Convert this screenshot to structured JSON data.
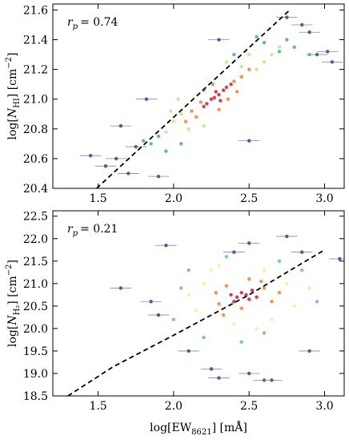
{
  "chart_data": [
    {
      "type": "scatter",
      "annotation": {
        "symbol": "r",
        "subscript": "p",
        "text": "= 0.74"
      },
      "ylabel": {
        "prefix": "log[",
        "symbol": "N",
        "subscript": "HI",
        "suffix": "] [cm",
        "superscript": "−2",
        "end": "]"
      },
      "xlim": [
        1.2,
        3.13
      ],
      "ylim": [
        20.4,
        21.64
      ],
      "xticks": [
        1.5,
        {
          "value": 2.0,
          "label": "2.0"
        },
        2.5,
        {
          "value": 3.0,
          "label": "3.0"
        }
      ],
      "yticks": [
        20.4,
        20.6,
        20.8,
        {
          "value": 21.0,
          "label": "21.0"
        },
        21.2,
        21.4,
        21.6
      ],
      "groups": [
        {
          "color": "#4a5aa8",
          "xerr": 0.07,
          "x": [
            1.55,
            1.62,
            1.7,
            1.75,
            1.45,
            2.9,
            2.95,
            3.02,
            2.85,
            2.3,
            1.65,
            1.9,
            2.5,
            2.75,
            1.82,
            3.05
          ],
          "y": [
            20.55,
            20.6,
            20.5,
            20.68,
            20.62,
            21.45,
            21.3,
            21.32,
            21.5,
            21.4,
            20.82,
            20.48,
            20.72,
            21.55,
            21.0,
            21.25
          ]
        },
        {
          "color": "#5fb8a8",
          "x": [
            1.85,
            1.9,
            2.7,
            2.75,
            2.8,
            2.6,
            1.8,
            2.9,
            1.95,
            2.55,
            2.4,
            2.05
          ],
          "y": [
            20.7,
            20.75,
            21.32,
            21.4,
            21.35,
            21.38,
            20.72,
            21.3,
            20.65,
            21.42,
            21.3,
            20.7
          ]
        },
        {
          "color": "#c8e89a",
          "x": [
            1.95,
            2.0,
            2.05,
            2.55,
            2.6,
            2.5,
            2.1,
            2.45,
            2.65,
            1.98,
            2.35,
            2.2,
            2.7,
            2.03
          ],
          "y": [
            20.78,
            20.85,
            20.9,
            21.2,
            21.25,
            21.3,
            20.8,
            21.22,
            21.3,
            20.92,
            21.25,
            20.82,
            21.35,
            21.0
          ]
        },
        {
          "color": "#f98e52",
          "x": [
            2.12,
            2.18,
            2.4,
            2.45,
            2.15,
            2.36,
            2.26,
            2.42,
            2.08,
            2.3,
            2.5,
            2.2
          ],
          "y": [
            20.92,
            20.98,
            21.12,
            21.15,
            20.88,
            21.0,
            21.1,
            21.05,
            20.85,
            20.93,
            21.2,
            21.06
          ]
        },
        {
          "color": "#d53e4f",
          "x": [
            2.25,
            2.3,
            2.28,
            2.33,
            2.22,
            2.35,
            2.27,
            2.31,
            2.2,
            2.38
          ],
          "y": [
            21.0,
            21.03,
            21.05,
            21.06,
            20.97,
            21.08,
            21.01,
            20.99,
            20.95,
            21.1
          ]
        }
      ],
      "fit": {
        "x": [
          1.49,
          2.77
        ],
        "y": [
          20.4,
          21.6
        ]
      }
    },
    {
      "type": "scatter",
      "annotation": {
        "symbol": "r",
        "subscript": "p",
        "text": "= 0.21"
      },
      "ylabel": {
        "prefix": "log[",
        "symbol": "N",
        "subscript": "H₂",
        "suffix": "] [cm",
        "superscript": "−2",
        "end": "]"
      },
      "xlabel": {
        "prefix": "log[EW",
        "subscript": "8621",
        "suffix": "] [mÅ]"
      },
      "xlim": [
        1.2,
        3.13
      ],
      "ylim": [
        18.5,
        22.62
      ],
      "xticks": [
        1.5,
        {
          "value": 2.0,
          "label": "2.0"
        },
        2.5,
        {
          "value": 3.0,
          "label": "3.0"
        }
      ],
      "yticks": [
        18.5,
        {
          "value": 19.0,
          "label": "19.0"
        },
        19.5,
        {
          "value": 20.0,
          "label": "20.0"
        },
        20.5,
        {
          "value": 21.0,
          "label": "21.0"
        },
        21.5,
        {
          "value": 22.0,
          "label": "22.0"
        },
        22.5
      ],
      "groups": [
        {
          "color": "#4a5aa8",
          "xerr": 0.07,
          "x": [
            1.65,
            1.85,
            1.95,
            2.25,
            2.5,
            2.75,
            2.85,
            3.1,
            2.9,
            2.6,
            1.9,
            2.1,
            2.5,
            2.65,
            2.3,
            2.4
          ],
          "y": [
            20.9,
            20.6,
            21.85,
            19.1,
            19.0,
            22.05,
            21.7,
            21.55,
            19.5,
            18.85,
            20.3,
            19.5,
            21.9,
            18.85,
            18.9,
            21.7
          ]
        },
        {
          "color": "#7ccaa5",
          "x": [
            2.0,
            2.05,
            2.85,
            2.95,
            2.2,
            2.7,
            2.45,
            2.1,
            2.6,
            2.35
          ],
          "y": [
            20.2,
            20.9,
            21.3,
            20.6,
            19.8,
            21.5,
            19.7,
            21.3,
            19.9,
            21.6
          ]
        },
        {
          "color": "#f4f0a0",
          "x": [
            2.15,
            2.2,
            2.75,
            2.8,
            2.25,
            2.6,
            2.4,
            2.1,
            2.9,
            2.55,
            2.3,
            2.65
          ],
          "y": [
            20.4,
            21.0,
            21.0,
            20.5,
            21.3,
            21.3,
            20.1,
            20.75,
            20.9,
            20.0,
            21.4,
            20.2
          ]
        },
        {
          "color": "#f98e52",
          "x": [
            2.3,
            2.6,
            2.35,
            2.65,
            2.45,
            2.58,
            2.28,
            2.7,
            2.5,
            2.33
          ],
          "y": [
            20.55,
            20.9,
            20.95,
            20.6,
            20.45,
            21.05,
            20.8,
            20.8,
            21.1,
            20.3
          ]
        },
        {
          "color": "#d53e4f",
          "x": [
            2.42,
            2.48,
            2.5,
            2.45,
            2.55,
            2.4,
            2.52,
            2.38
          ],
          "y": [
            20.7,
            20.75,
            20.65,
            20.8,
            20.7,
            20.6,
            20.85,
            20.75
          ]
        }
      ],
      "fit": {
        "x": [
          1.3,
          1.6,
          2.0,
          2.5,
          3.0
        ],
        "y": [
          18.5,
          19.15,
          19.85,
          20.75,
          21.75
        ]
      }
    }
  ]
}
